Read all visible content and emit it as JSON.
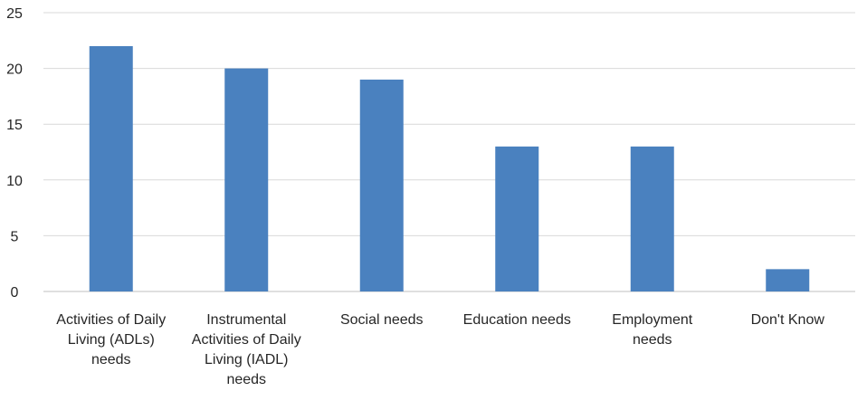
{
  "chart_data": {
    "type": "bar",
    "title": "",
    "xlabel": "",
    "ylabel": "",
    "categories": [
      [
        "Activities of Daily",
        "Living (ADLs)",
        "needs"
      ],
      [
        "Instrumental",
        "Activities of Daily",
        "Living (IADL)",
        "needs"
      ],
      [
        "Social needs"
      ],
      [
        "Education needs"
      ],
      [
        "Employment",
        "needs"
      ],
      [
        "Don't Know"
      ]
    ],
    "values": [
      22,
      20,
      19,
      13,
      13,
      2
    ],
    "ylim": [
      0,
      25
    ],
    "yticks": [
      "0",
      "5",
      "10",
      "15",
      "20",
      "25"
    ],
    "grid": true,
    "legend": "none",
    "colors": {
      "bar": "#4a81bf",
      "grid": "#d9d9d9",
      "axis": "#bfbfbf"
    }
  }
}
